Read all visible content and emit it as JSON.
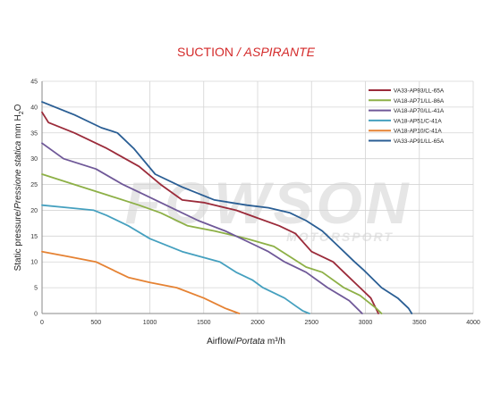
{
  "title": {
    "main": "SUCTION",
    "separator": "/",
    "italic": "ASPIRANTE"
  },
  "xaxis": {
    "label": "Airflow",
    "separator": "/",
    "italic": "Portata",
    "unit": "m³/h"
  },
  "yaxis": {
    "label": "Static pressure",
    "separator": "/",
    "italic": "Pressione statica",
    "unit_pre": "mm H",
    "unit_sub": "2",
    "unit_post": "O"
  },
  "watermark": "FOWSON MOTORSPORT",
  "chart_data": {
    "type": "line",
    "xlim": [
      0,
      4000
    ],
    "ylim": [
      0,
      45
    ],
    "xticks": [
      0,
      500,
      1000,
      1500,
      2000,
      2500,
      3000,
      3500,
      4000
    ],
    "yticks": [
      0,
      5,
      10,
      15,
      20,
      25,
      30,
      35,
      40,
      45
    ],
    "grid": true,
    "legend_position": "top-right",
    "series": [
      {
        "name": "VA33-AP93/LL-65A",
        "color": "#9b2b3a",
        "x": [
          0,
          60,
          300,
          600,
          900,
          1100,
          1300,
          1500,
          1800,
          2000,
          2200,
          2350,
          2500,
          2700,
          2800,
          2950,
          3050,
          3120
        ],
        "y": [
          39,
          37,
          35,
          32,
          28.5,
          25,
          22,
          21.5,
          20,
          18.5,
          17,
          15.5,
          12,
          10,
          8,
          5,
          3,
          0
        ]
      },
      {
        "name": "VA18-AP71/LL-86A",
        "color": "#8db046",
        "x": [
          0,
          300,
          600,
          900,
          1100,
          1350,
          1600,
          1900,
          2150,
          2300,
          2450,
          2600,
          2800,
          2950,
          3100,
          3150
        ],
        "y": [
          27,
          25,
          23,
          21,
          19.5,
          17,
          16,
          14.5,
          13,
          11,
          9,
          8,
          5,
          3.5,
          1,
          0
        ]
      },
      {
        "name": "VA18-AP70/LL-41A",
        "color": "#6f5898",
        "x": [
          0,
          200,
          500,
          750,
          950,
          1200,
          1450,
          1700,
          1950,
          2100,
          2250,
          2450,
          2650,
          2850,
          2970
        ],
        "y": [
          33,
          30,
          28,
          25,
          23,
          20.5,
          18,
          16,
          13.5,
          12,
          10,
          8,
          5,
          2.5,
          0
        ]
      },
      {
        "name": "VA18-AP51/C-41A",
        "color": "#45a0bf",
        "x": [
          0,
          250,
          480,
          600,
          800,
          1000,
          1300,
          1650,
          1800,
          1950,
          2050,
          2250,
          2350,
          2420,
          2480
        ],
        "y": [
          21,
          20.5,
          20,
          19,
          17,
          14.5,
          12,
          10,
          8,
          6.5,
          5,
          3,
          1.5,
          0.5,
          0
        ]
      },
      {
        "name": "VA18-AP10/C-41A",
        "color": "#e58233",
        "x": [
          0,
          250,
          500,
          800,
          1000,
          1250,
          1500,
          1700,
          1830
        ],
        "y": [
          12,
          11,
          10,
          7,
          6,
          5,
          3,
          1,
          0
        ]
      },
      {
        "name": "VA33-AP91/LL-65A",
        "color": "#2a5e94",
        "x": [
          0,
          300,
          550,
          700,
          850,
          1050,
          1300,
          1600,
          1900,
          2100,
          2300,
          2450,
          2600,
          2750,
          2900,
          2980,
          3150,
          3300,
          3400,
          3430
        ],
        "y": [
          41,
          38.5,
          36,
          35,
          32,
          27,
          24.5,
          22,
          21,
          20.5,
          19.5,
          18,
          16,
          13,
          10,
          8.5,
          5,
          3,
          1,
          0
        ]
      }
    ]
  }
}
